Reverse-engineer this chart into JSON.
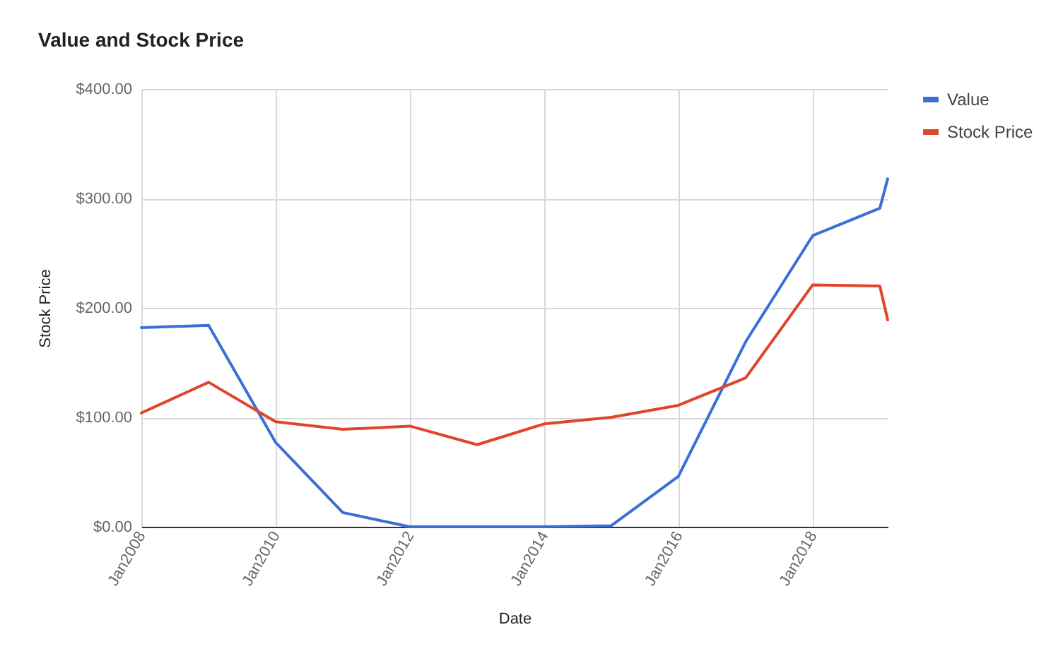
{
  "chart_data": {
    "type": "line",
    "title": "Value and Stock Price",
    "xlabel": "Date",
    "ylabel": "Stock Price",
    "x": [
      "2007-12-31",
      "2008-12-31",
      "2009-12-31",
      "2010-12-31",
      "2011-12-31",
      "2012-12-31",
      "2013-12-31",
      "2014-12-31",
      "2015-12-31",
      "2016-12-31",
      "2017-12-31",
      "2018-12-31",
      "2019-02-12"
    ],
    "series": [
      {
        "name": "Value",
        "color": "#3c6fd6",
        "values": [
          182,
          184,
          77,
          13,
          0,
          0,
          0,
          1,
          46,
          169,
          266,
          291,
          318
        ]
      },
      {
        "name": "Stock Price",
        "color": "#e0452b",
        "values": [
          104,
          132,
          96,
          89,
          92,
          75,
          94,
          100,
          111,
          136,
          221,
          220,
          189
        ]
      }
    ],
    "xlim": [
      "2007-12-31",
      "2019-02-12"
    ],
    "xticks": [
      {
        "value": "2008-01-01",
        "label": "Jan2008"
      },
      {
        "value": "2010-01-01",
        "label": "Jan2010"
      },
      {
        "value": "2012-01-01",
        "label": "Jan2012"
      },
      {
        "value": "2014-01-01",
        "label": "Jan2014"
      },
      {
        "value": "2016-01-01",
        "label": "Jan2016"
      },
      {
        "value": "2018-01-01",
        "label": "Jan2018"
      }
    ],
    "ylim": [
      0,
      400
    ],
    "yticks": [
      {
        "value": 0,
        "label": "$0.00"
      },
      {
        "value": 100,
        "label": "$100.00"
      },
      {
        "value": 200,
        "label": "$200.00"
      },
      {
        "value": 300,
        "label": "$300.00"
      },
      {
        "value": 400,
        "label": "$400.00"
      }
    ],
    "grid": true,
    "legend": "right"
  }
}
